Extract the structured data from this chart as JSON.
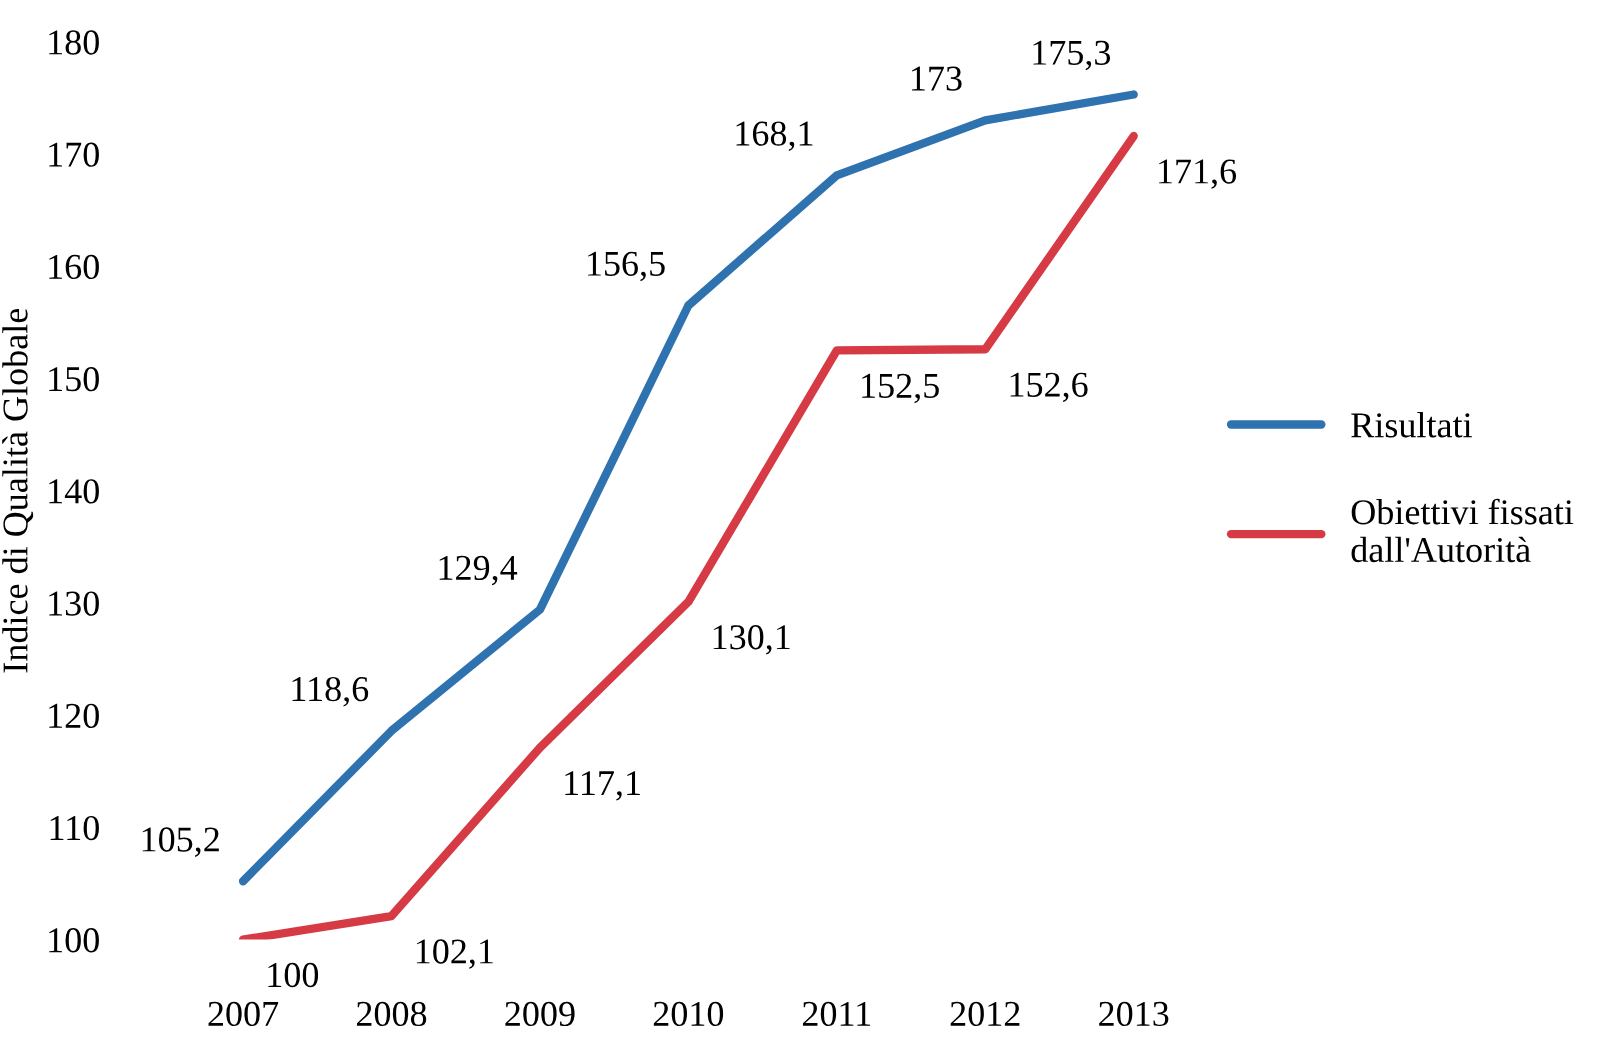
{
  "chart_data": {
    "type": "line",
    "ylabel": "Indice di Qualità Globale",
    "categories": [
      "2007",
      "2008",
      "2009",
      "2010",
      "2011",
      "2012",
      "2013"
    ],
    "series": [
      {
        "name": "Risultati",
        "color": "#2f72b0",
        "values": [
          105.2,
          118.6,
          129.4,
          156.5,
          168.1,
          173,
          175.3
        ],
        "value_labels": [
          "105,2",
          "118,6",
          "129,4",
          "156,5",
          "168,1",
          "173",
          "175,3"
        ]
      },
      {
        "name": "Obiettivi fissati dall'Autorità",
        "color": "#d63a44",
        "values": [
          100,
          102.1,
          117.1,
          130.1,
          152.5,
          152.6,
          171.6
        ],
        "value_labels": [
          "100",
          "102,1",
          "117,1",
          "130,1",
          "152,5",
          "152,6",
          "171,6"
        ]
      }
    ],
    "ylim": [
      100,
      180
    ],
    "yticks": [
      100,
      110,
      120,
      130,
      140,
      150,
      160,
      170,
      180
    ],
    "grid": false,
    "legend": "right",
    "marker": "none",
    "line_style": "solid"
  }
}
